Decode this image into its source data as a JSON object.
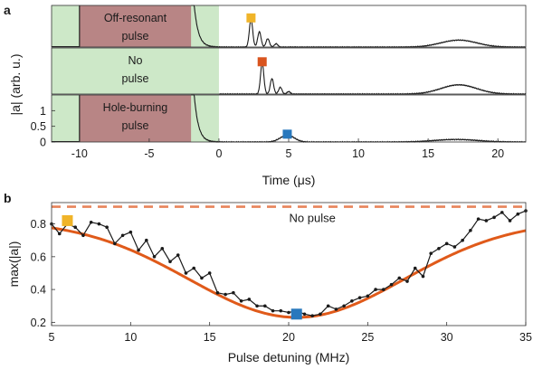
{
  "figure": {
    "panel_a_label": "a",
    "panel_b_label": "b"
  },
  "colors": {
    "green_window": "#cde8c8",
    "pulse_box": "#b88585",
    "trace": "#1a1a1a",
    "marker_yellow": "#f0b429",
    "marker_orange": "#d9541e",
    "marker_blue": "#2878bd",
    "fit_orange": "#e05a1a",
    "no_pulse_dashed": "#e8845a"
  },
  "chart_data": [
    {
      "type": "line",
      "panel": "a",
      "ylabel": "|a| (arb. u.)",
      "xlabel": "Time (μs)",
      "xlim": [
        -12,
        22
      ],
      "xticks": [
        -10,
        -5,
        0,
        5,
        10,
        15,
        20
      ],
      "ylim": [
        0,
        1.5
      ],
      "yticks": [
        0,
        0.5,
        1
      ],
      "subpanels": [
        {
          "name": "off-resonant",
          "pulse_label_line1": "Off-resonant",
          "pulse_label_line2": "pulse",
          "green_window": [
            -12,
            0
          ],
          "pulse_box": [
            -10,
            -2
          ],
          "decay_start": -2,
          "echo_peaks": [
            [
              2.3,
              1.0
            ],
            [
              2.9,
              0.55
            ],
            [
              3.5,
              0.3
            ],
            [
              4.1,
              0.12
            ]
          ],
          "bump": {
            "center": 17.2,
            "height": 0.25,
            "width": 1.8
          },
          "marker": {
            "x": 2.3,
            "y": 1.05,
            "color": "yellow"
          }
        },
        {
          "name": "no-pulse",
          "pulse_label_line1": "No",
          "pulse_label_line2": "pulse",
          "green_window": [
            -12,
            0
          ],
          "pulse_box": null,
          "decay_start": null,
          "echo_peaks": [
            [
              3.1,
              1.0
            ],
            [
              3.8,
              0.5
            ],
            [
              4.4,
              0.22
            ],
            [
              5.0,
              0.08
            ]
          ],
          "bump": {
            "center": 17.2,
            "height": 0.3,
            "width": 1.8
          },
          "marker": {
            "x": 3.1,
            "y": 1.05,
            "color": "orange"
          }
        },
        {
          "name": "hole-burning",
          "pulse_label_line1": "Hole-burning",
          "pulse_label_line2": "pulse",
          "green_window": [
            -12,
            0
          ],
          "pulse_box": [
            -10,
            -2
          ],
          "decay_start": -2,
          "echo_peaks": [
            [
              4.9,
              0.22
            ]
          ],
          "bump": {
            "center": 17.0,
            "height": 0.08,
            "width": 2.2
          },
          "marker": {
            "x": 4.9,
            "y": 0.25,
            "color": "blue"
          }
        }
      ]
    },
    {
      "type": "line",
      "panel": "b",
      "xlabel": "Pulse detuning (MHz)",
      "ylabel": "max(|a|)",
      "xlim": [
        5,
        35
      ],
      "xticks": [
        5,
        10,
        15,
        20,
        25,
        30,
        35
      ],
      "ylim": [
        0.18,
        0.93
      ],
      "yticks": [
        0.2,
        0.4,
        0.6,
        0.8
      ],
      "no_pulse_level": 0.905,
      "no_pulse_label": "No pulse",
      "series": [
        {
          "kind": "measured",
          "x": [
            5,
            5.5,
            6,
            6.5,
            7,
            7.5,
            8,
            8.5,
            9,
            9.5,
            10,
            10.5,
            11,
            11.5,
            12,
            12.5,
            13,
            13.5,
            14,
            14.5,
            15,
            15.5,
            16,
            16.5,
            17,
            17.5,
            18,
            18.5,
            19,
            19.5,
            20,
            20.5,
            21,
            21.5,
            22,
            22.5,
            23,
            23.5,
            24,
            24.5,
            25,
            25.5,
            26,
            26.5,
            27,
            27.5,
            28,
            28.5,
            29,
            29.5,
            30,
            30.5,
            31,
            31.5,
            32,
            32.5,
            33,
            33.5,
            34,
            34.5,
            35
          ],
          "values": [
            0.8,
            0.74,
            0.8,
            0.78,
            0.73,
            0.81,
            0.8,
            0.78,
            0.68,
            0.73,
            0.75,
            0.64,
            0.7,
            0.6,
            0.65,
            0.57,
            0.61,
            0.5,
            0.53,
            0.47,
            0.5,
            0.38,
            0.37,
            0.38,
            0.33,
            0.34,
            0.3,
            0.3,
            0.27,
            0.27,
            0.26,
            0.27,
            0.25,
            0.24,
            0.25,
            0.3,
            0.28,
            0.3,
            0.33,
            0.35,
            0.36,
            0.4,
            0.4,
            0.43,
            0.47,
            0.45,
            0.53,
            0.48,
            0.62,
            0.65,
            0.68,
            0.66,
            0.7,
            0.76,
            0.83,
            0.82,
            0.84,
            0.87,
            0.82,
            0.86,
            0.88
          ]
        },
        {
          "kind": "fit",
          "model": "gaussian-dip",
          "baseline": 0.82,
          "depth": 0.59,
          "center": 20.5,
          "sigma": 6.8
        }
      ],
      "markers": [
        {
          "x": 6,
          "y": 0.82,
          "color": "yellow"
        },
        {
          "x": 20.5,
          "y": 0.25,
          "color": "blue"
        }
      ]
    }
  ]
}
